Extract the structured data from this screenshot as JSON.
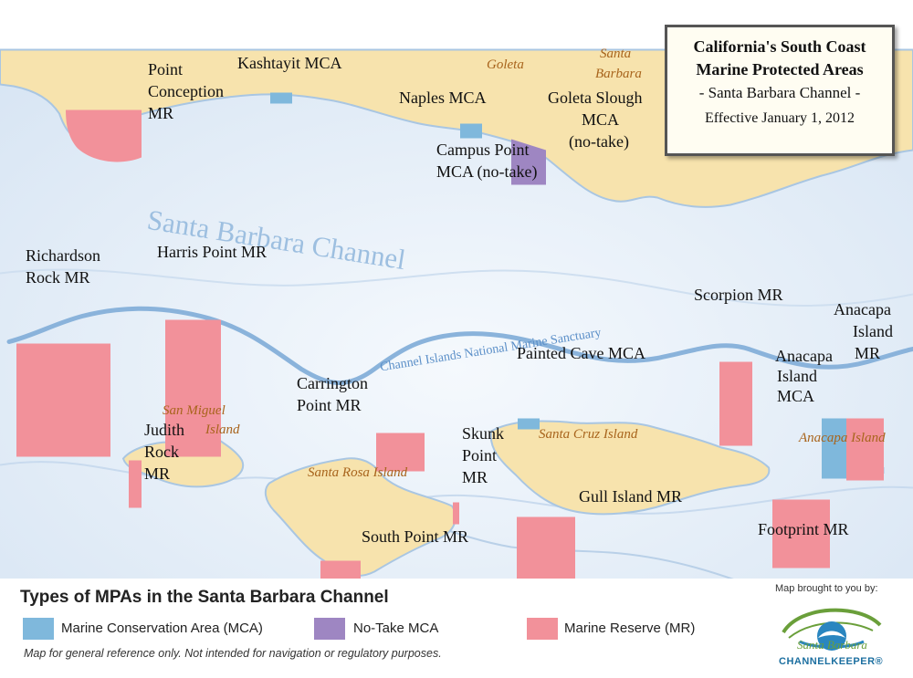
{
  "title_box": {
    "line1": "California's South Coast",
    "line2": "Marine Protected Areas",
    "line3": "- Santa Barbara Channel -",
    "line4": "Effective January 1, 2012"
  },
  "water_labels": {
    "channel": "Santa Barbara Channel",
    "sanctuary": "Channel Islands National Marine Sanctuary"
  },
  "towns": {
    "goleta": "Goleta",
    "santa_barbara_1": "Santa",
    "santa_barbara_2": "Barbara"
  },
  "islands": {
    "san_miguel_1": "San Miguel",
    "san_miguel_2": "Island",
    "santa_rosa": "Santa Rosa Island",
    "santa_cruz": "Santa Cruz Island",
    "anacapa": "Anacapa Island"
  },
  "mpa_labels": {
    "kashtayit": "Kashtayit MCA",
    "point_conception_1": "Point",
    "point_conception_2": "Conception",
    "point_conception_3": "MR",
    "naples": "Naples MCA",
    "goleta_slough_1": "Goleta Slough",
    "goleta_slough_2": "MCA",
    "goleta_slough_3": "(no-take)",
    "campus_point_1": "Campus Point",
    "campus_point_2": "MCA (no-take)",
    "richardson_1": "Richardson",
    "richardson_2": "Rock MR",
    "harris": "Harris Point MR",
    "scorpion": "Scorpion MR",
    "anacapa_mr_1": "Anacapa",
    "anacapa_mr_2": "Island",
    "anacapa_mr_3": "MR",
    "anacapa_mca_1": "Anacapa",
    "anacapa_mca_2": "Island",
    "anacapa_mca_3": "MCA",
    "painted_cave": "Painted Cave MCA",
    "carrington_1": "Carrington",
    "carrington_2": "Point MR",
    "judith_1": "Judith",
    "judith_2": "Rock",
    "judith_3": "MR",
    "skunk_1": "Skunk",
    "skunk_2": "Point",
    "skunk_3": "MR",
    "gull": "Gull Island MR",
    "south_point": "South Point MR",
    "footprint": "Footprint MR"
  },
  "legend": {
    "title": "Types of MPAs in the Santa Barbara Channel",
    "items": [
      {
        "label": "Marine Conservation Area (MCA)",
        "color": "#7fb8dc"
      },
      {
        "label": "No-Take MCA",
        "color": "#9e86c2"
      },
      {
        "label": "Marine Reserve (MR)",
        "color": "#f2919a"
      }
    ],
    "disclaimer": "Map for general reference only. Not intended for navigation or regulatory purposes."
  },
  "credit": {
    "brought": "Map brought to you by:",
    "logo_line1": "Santa Barbara",
    "logo_line2": "CHANNELKEEPER®"
  },
  "colors": {
    "water": "#e6eff8",
    "land": "#f7e3ad",
    "mca": "#7fb8dc",
    "no_take": "#9e86c2",
    "mr": "#f2919a"
  }
}
